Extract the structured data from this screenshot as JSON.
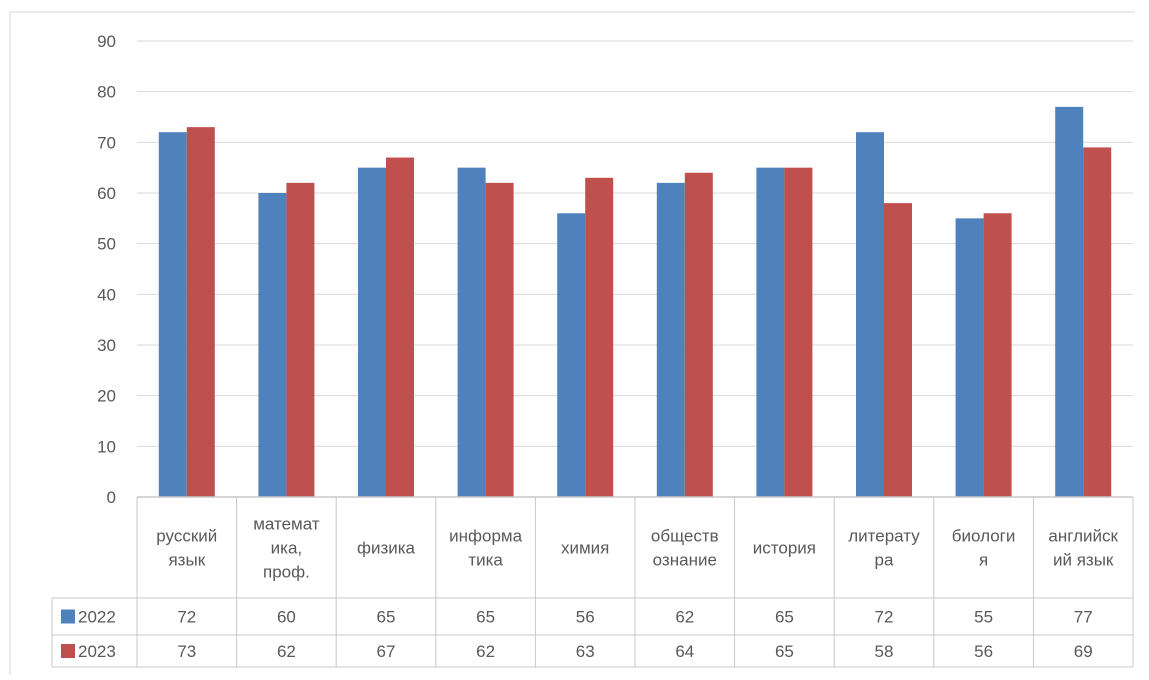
{
  "chart_data": {
    "type": "bar",
    "title": "",
    "xlabel": "",
    "ylabel": "",
    "ylim": [
      0,
      90
    ],
    "yticks": [
      0,
      10,
      20,
      30,
      40,
      50,
      60,
      70,
      80,
      90
    ],
    "grid": true,
    "legend": "data-table-left",
    "categories": [
      [
        "русский",
        "язык"
      ],
      [
        "математ",
        "ика,",
        "проф."
      ],
      [
        "физика"
      ],
      [
        "информа",
        "тика"
      ],
      [
        "химия"
      ],
      [
        "обществ",
        "ознание"
      ],
      [
        "история"
      ],
      [
        "литерату",
        "ра"
      ],
      [
        "биологи",
        "я"
      ],
      [
        "английск",
        "ий язык"
      ]
    ],
    "series": [
      {
        "name": "2022",
        "color": "#4f81bd",
        "values": [
          72,
          60,
          65,
          65,
          56,
          62,
          65,
          72,
          55,
          77
        ]
      },
      {
        "name": "2023",
        "color": "#c0504d",
        "values": [
          73,
          62,
          67,
          62,
          63,
          64,
          65,
          58,
          56,
          69
        ]
      }
    ]
  }
}
